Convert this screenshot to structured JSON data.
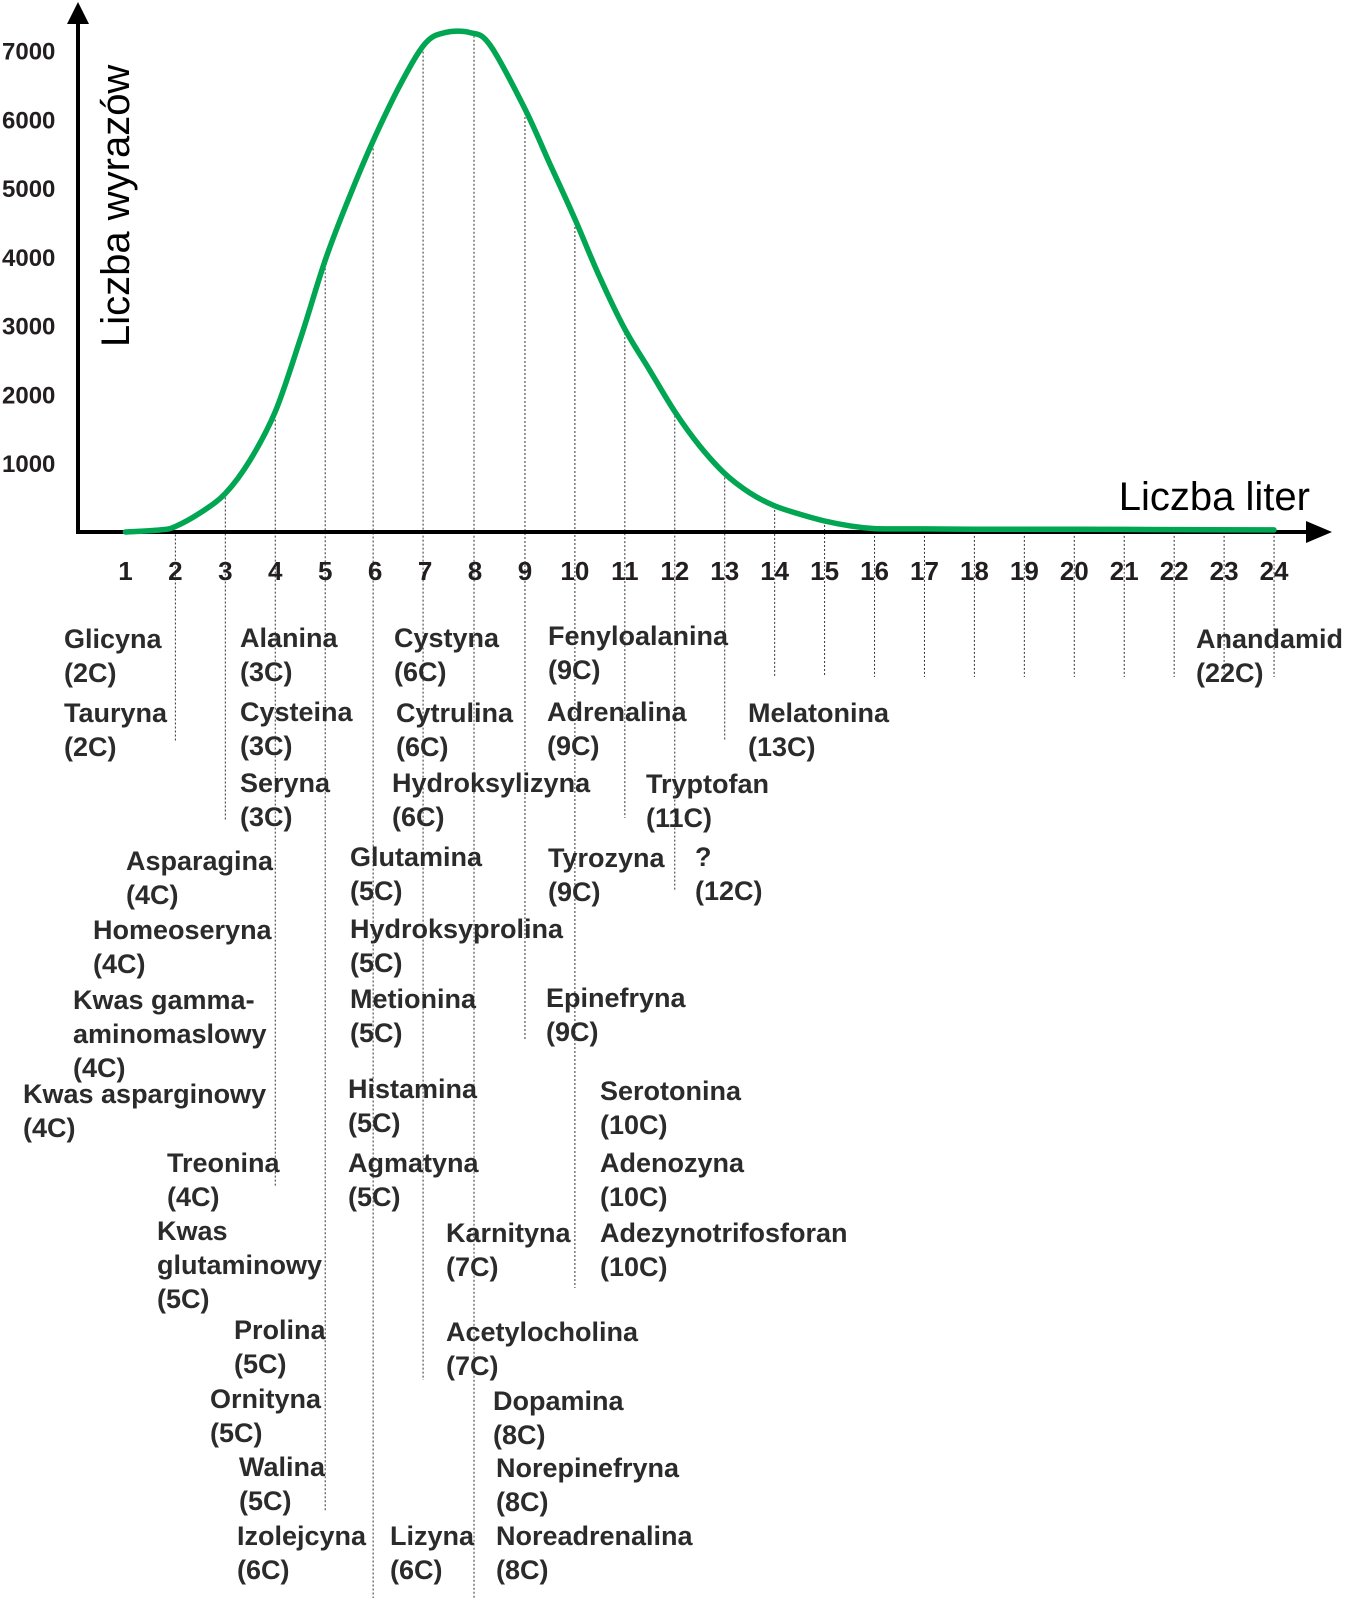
{
  "chart_data": {
    "type": "line",
    "xlabel": "Liczba liter",
    "ylabel": "Liczba wyrazów",
    "x": [
      1,
      2,
      3,
      4,
      5,
      6,
      7,
      8,
      9,
      10,
      11,
      12,
      13,
      14,
      15,
      16,
      17,
      18,
      19,
      20,
      21,
      22,
      23,
      24
    ],
    "x_tick_labels": [
      "1",
      "2",
      "3",
      "4",
      "5",
      "6",
      "7",
      "8",
      "9",
      "10",
      "11",
      "12",
      "13",
      "14",
      "15",
      "16",
      "17",
      "18",
      "19",
      "20",
      "21",
      "22",
      "23",
      "24"
    ],
    "y_ticks": [
      1000,
      2000,
      3000,
      4000,
      5000,
      6000,
      7000
    ],
    "y_tick_labels": [
      "1000",
      "2000",
      "3000",
      "4000",
      "5000",
      "6000",
      "7000"
    ],
    "ylim": [
      0,
      7400
    ],
    "xlim": [
      0.05,
      24.8
    ],
    "grid": false,
    "series": [
      {
        "color": "#00a651",
        "values": [
          [
            1,
            0
          ],
          [
            1.7,
            30
          ],
          [
            2,
            80
          ],
          [
            2.5,
            280
          ],
          [
            3,
            560
          ],
          [
            3.5,
            1050
          ],
          [
            4,
            1750
          ],
          [
            4.5,
            2800
          ],
          [
            5,
            3950
          ],
          [
            5.5,
            4900
          ],
          [
            6,
            5750
          ],
          [
            6.5,
            6500
          ],
          [
            7,
            7100
          ],
          [
            7.4,
            7260
          ],
          [
            7.9,
            7260
          ],
          [
            8.3,
            7080
          ],
          [
            9,
            6150
          ],
          [
            9.5,
            5350
          ],
          [
            10,
            4550
          ],
          [
            10.5,
            3700
          ],
          [
            11,
            2950
          ],
          [
            11.5,
            2350
          ],
          [
            12,
            1750
          ],
          [
            12.5,
            1250
          ],
          [
            13,
            850
          ],
          [
            13.5,
            570
          ],
          [
            14,
            380
          ],
          [
            14.5,
            260
          ],
          [
            15,
            160
          ],
          [
            15.5,
            90
          ],
          [
            16,
            50
          ],
          [
            17,
            45
          ],
          [
            18,
            40
          ],
          [
            20,
            40
          ],
          [
            22,
            35
          ],
          [
            24,
            30
          ]
        ]
      }
    ],
    "annotations": [
      {
        "x": 2,
        "lines": [
          "Glicyna",
          "(2C)"
        ]
      },
      {
        "x": 2,
        "lines": [
          "Tauryna",
          "(2C)"
        ]
      },
      {
        "x": 3,
        "lines": [
          "Alanina",
          "(3C)"
        ]
      },
      {
        "x": 3,
        "lines": [
          "Cysteina",
          "(3C)"
        ]
      },
      {
        "x": 3,
        "lines": [
          "Seryna",
          "(3C)"
        ]
      },
      {
        "x": 4,
        "lines": [
          "Asparagina",
          "(4C)"
        ]
      },
      {
        "x": 4,
        "lines": [
          "Homeoseryna",
          "(4C)"
        ]
      },
      {
        "x": 4,
        "lines": [
          "Kwas gamma-",
          "aminomaslowy",
          "(4C)"
        ]
      },
      {
        "x": 4,
        "lines": [
          "Kwas asparginowy",
          "(4C)"
        ]
      },
      {
        "x": 4,
        "lines": [
          "Treonina",
          "(4C)"
        ]
      },
      {
        "x": 5,
        "lines": [
          "Kwas",
          "glutaminowy",
          "(5C)"
        ]
      },
      {
        "x": 5,
        "lines": [
          "Prolina",
          "(5C)"
        ]
      },
      {
        "x": 5,
        "lines": [
          "Ornityna",
          "(5C)"
        ]
      },
      {
        "x": 5,
        "lines": [
          "Walina",
          "(5C)"
        ]
      },
      {
        "x": 6,
        "lines": [
          "Izolejcyna",
          "(6C)"
        ]
      },
      {
        "x": 6,
        "lines": [
          "Lizyna",
          "(6C)"
        ]
      },
      {
        "x": 5,
        "lines": [
          "Glutamina",
          "(5C)"
        ]
      },
      {
        "x": 5,
        "lines": [
          "Hydroksyprolina",
          "(5C)"
        ]
      },
      {
        "x": 5,
        "lines": [
          "Metionina",
          "(5C)"
        ]
      },
      {
        "x": 5,
        "lines": [
          "Histamina",
          "(5C)"
        ]
      },
      {
        "x": 5,
        "lines": [
          "Agmatyna",
          "(5C)"
        ]
      },
      {
        "x": 6,
        "lines": [
          "Cystyna",
          "(6C)"
        ]
      },
      {
        "x": 6,
        "lines": [
          "Cytrulina",
          "(6C)"
        ]
      },
      {
        "x": 6,
        "lines": [
          "Hydroksylizyna",
          "(6C)"
        ]
      },
      {
        "x": 7,
        "lines": [
          "Karnityna",
          "(7C)"
        ]
      },
      {
        "x": 7,
        "lines": [
          "Acetylocholina",
          "(7C)"
        ]
      },
      {
        "x": 8,
        "lines": [
          "Dopamina",
          "(8C)"
        ]
      },
      {
        "x": 8,
        "lines": [
          "Norepinefryna",
          "(8C)"
        ]
      },
      {
        "x": 8,
        "lines": [
          "Noreadrenalina",
          "(8C)"
        ]
      },
      {
        "x": 9,
        "lines": [
          "Fenyloalanina",
          "(9C)"
        ]
      },
      {
        "x": 9,
        "lines": [
          "Adrenalina",
          "(9C)"
        ]
      },
      {
        "x": 9,
        "lines": [
          "Tyrozyna",
          "(9C)"
        ]
      },
      {
        "x": 9,
        "lines": [
          "Epinefryna",
          "(9C)"
        ]
      },
      {
        "x": 10,
        "lines": [
          "Serotonina",
          "(10C)"
        ]
      },
      {
        "x": 10,
        "lines": [
          "Adenozyna",
          "(10C)"
        ]
      },
      {
        "x": 10,
        "lines": [
          "Adezynotrifosforan",
          "(10C)"
        ]
      },
      {
        "x": 11,
        "lines": [
          "Tryptofan",
          "(11C)"
        ]
      },
      {
        "x": 12,
        "lines": [
          "?",
          "(12C)"
        ]
      },
      {
        "x": 13,
        "lines": [
          "Melatonina",
          "(13C)"
        ]
      },
      {
        "x": 22,
        "lines": [
          "Anandamid",
          "(22C)"
        ]
      }
    ]
  }
}
